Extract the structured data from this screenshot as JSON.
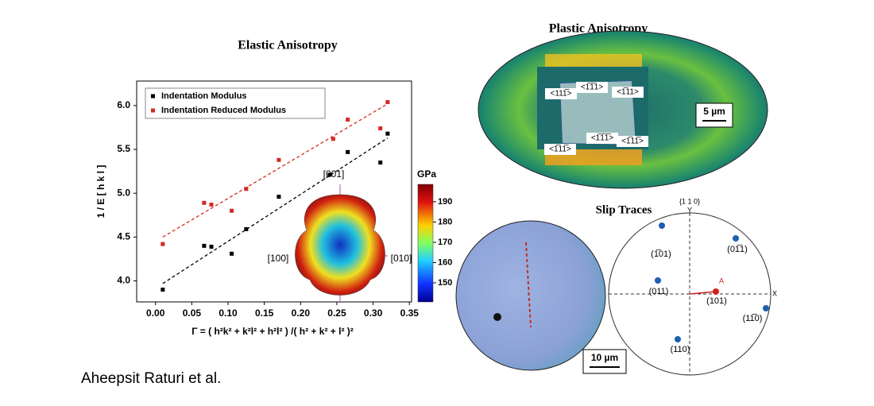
{
  "chart_data": {
    "type": "scatter",
    "title": "Elastic Anisotropy",
    "x_label": "Γ = ( h²k² + k²l² + h²l² ) /( h² + k² + l² )²",
    "y_label": "1 / E [ h k l ]",
    "xlim": [
      -0.026,
      0.353
    ],
    "ylim": [
      3.76,
      6.28
    ],
    "xticks": [
      {
        "value": 0,
        "label": "0.00"
      },
      0.05,
      {
        "value": 0.1,
        "label": "0.10"
      },
      0.15,
      {
        "value": 0.2,
        "label": "0.20"
      },
      0.25,
      {
        "value": 0.3,
        "label": "0.30"
      },
      0.35
    ],
    "yticks": [
      {
        "value": 4,
        "label": "4.0"
      },
      4.5,
      {
        "value": 5,
        "label": "5.0"
      },
      5.5,
      {
        "value": 6,
        "label": "6.0"
      }
    ],
    "legend": "upper left",
    "series": [
      {
        "name": "Indentation Modulus",
        "color": "#000000",
        "x": [
          0.01,
          0.067,
          0.077,
          0.105,
          0.125,
          0.17,
          0.24,
          0.265,
          0.31,
          0.32
        ],
        "values": [
          3.9,
          4.4,
          4.39,
          4.31,
          4.59,
          4.96,
          5.21,
          5.47,
          5.35,
          5.68
        ]
      },
      {
        "name": "Indentation Reduced Modulus",
        "color": "#d42a1f",
        "x": [
          0.01,
          0.067,
          0.077,
          0.105,
          0.125,
          0.17,
          0.245,
          0.265,
          0.31,
          0.32
        ],
        "values": [
          4.42,
          4.89,
          4.87,
          4.8,
          5.05,
          5.38,
          5.62,
          5.84,
          5.74,
          6.04
        ]
      }
    ],
    "trendlines": [
      {
        "color": "#d42a1f",
        "x": [
          0.01,
          0.32
        ],
        "values": [
          4.5,
          6.02
        ]
      },
      {
        "color": "#000000",
        "x": [
          0.01,
          0.32
        ],
        "values": [
          3.97,
          5.63
        ]
      }
    ],
    "colorbar": {
      "label": "GPa",
      "lim": [
        140.6,
        198.6
      ],
      "ticks": [
        150,
        160,
        170,
        180,
        190
      ]
    },
    "inset_labels": [
      "[001]",
      "[100]",
      "[010]"
    ]
  },
  "plastic_anisotropy": {
    "title": "Plastic Anisotropy",
    "scale_bar": "5 µm",
    "labels": [
      "<111̅>",
      "<1̅1̅1>",
      "<1̅11>",
      "<1̅11̅>",
      "<1̅1̅1̅>",
      "<1̅11̅>"
    ]
  },
  "slip_traces": {
    "title": "Slip Traces",
    "scale_bar": "10 µm",
    "pole_figure": {
      "header": "{1 1 0}",
      "axis_y": "Y",
      "axis_x": "X",
      "point_a": "A",
      "poles": [
        "(1̅01)",
        "(01̅1)",
        "(011)",
        "(101)",
        "(11̅0)",
        "(110)"
      ]
    }
  },
  "credit": "Aheepsit Raturi et al."
}
